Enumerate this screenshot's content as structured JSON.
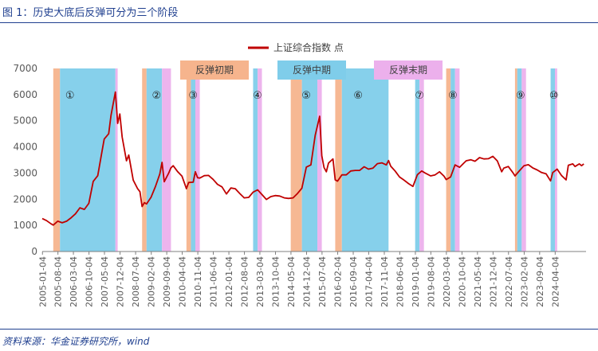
{
  "figure": {
    "title": "图 1：历史大底后反弹可分为三个阶段",
    "source": "资料来源：华金证券研究所，wind"
  },
  "chart_data": {
    "type": "line",
    "series": [
      {
        "name": "上证综合指数 点",
        "color": "#c00000",
        "points": [
          [
            "2005-01",
            1260
          ],
          [
            "2005-03",
            1180
          ],
          [
            "2005-05",
            1060
          ],
          [
            "2005-06",
            1010
          ],
          [
            "2005-08",
            1160
          ],
          [
            "2005-10",
            1100
          ],
          [
            "2005-12",
            1160
          ],
          [
            "2006-02",
            1290
          ],
          [
            "2006-04",
            1440
          ],
          [
            "2006-06",
            1670
          ],
          [
            "2006-08",
            1610
          ],
          [
            "2006-10",
            1840
          ],
          [
            "2006-12",
            2680
          ],
          [
            "2007-02",
            2900
          ],
          [
            "2007-04",
            3840
          ],
          [
            "2007-05",
            4300
          ],
          [
            "2007-07",
            4500
          ],
          [
            "2007-08",
            5200
          ],
          [
            "2007-10",
            6100
          ],
          [
            "2007-11",
            4900
          ],
          [
            "2007-12",
            5260
          ],
          [
            "2008-01",
            4380
          ],
          [
            "2008-03",
            3470
          ],
          [
            "2008-04",
            3690
          ],
          [
            "2008-06",
            2730
          ],
          [
            "2008-08",
            2400
          ],
          [
            "2008-09",
            2290
          ],
          [
            "2008-10",
            1720
          ],
          [
            "2008-11",
            1870
          ],
          [
            "2008-12",
            1820
          ],
          [
            "2009-02",
            2080
          ],
          [
            "2009-04",
            2480
          ],
          [
            "2009-06",
            2960
          ],
          [
            "2009-07",
            3410
          ],
          [
            "2009-08",
            2670
          ],
          [
            "2009-10",
            3000
          ],
          [
            "2009-11",
            3200
          ],
          [
            "2009-12",
            3280
          ],
          [
            "2010-02",
            3050
          ],
          [
            "2010-04",
            2880
          ],
          [
            "2010-06",
            2400
          ],
          [
            "2010-07",
            2640
          ],
          [
            "2010-09",
            2650
          ],
          [
            "2010-10",
            3050
          ],
          [
            "2010-11",
            2820
          ],
          [
            "2010-12",
            2810
          ],
          [
            "2011-02",
            2900
          ],
          [
            "2011-04",
            2910
          ],
          [
            "2011-06",
            2760
          ],
          [
            "2011-08",
            2570
          ],
          [
            "2011-10",
            2470
          ],
          [
            "2011-12",
            2200
          ],
          [
            "2012-02",
            2430
          ],
          [
            "2012-04",
            2400
          ],
          [
            "2012-06",
            2220
          ],
          [
            "2012-08",
            2050
          ],
          [
            "2012-10",
            2070
          ],
          [
            "2012-12",
            2270
          ],
          [
            "2013-02",
            2360
          ],
          [
            "2013-04",
            2180
          ],
          [
            "2013-06",
            1990
          ],
          [
            "2013-08",
            2100
          ],
          [
            "2013-10",
            2140
          ],
          [
            "2013-12",
            2120
          ],
          [
            "2014-02",
            2050
          ],
          [
            "2014-04",
            2030
          ],
          [
            "2014-06",
            2050
          ],
          [
            "2014-08",
            2220
          ],
          [
            "2014-10",
            2420
          ],
          [
            "2014-12",
            3230
          ],
          [
            "2015-02",
            3310
          ],
          [
            "2015-04",
            4440
          ],
          [
            "2015-06",
            5170
          ],
          [
            "2015-07",
            3660
          ],
          [
            "2015-08",
            3210
          ],
          [
            "2015-09",
            3050
          ],
          [
            "2015-10",
            3380
          ],
          [
            "2015-12",
            3540
          ],
          [
            "2016-01",
            2740
          ],
          [
            "2016-02",
            2690
          ],
          [
            "2016-04",
            2930
          ],
          [
            "2016-06",
            2930
          ],
          [
            "2016-08",
            3080
          ],
          [
            "2016-10",
            3100
          ],
          [
            "2016-12",
            3100
          ],
          [
            "2017-02",
            3240
          ],
          [
            "2017-04",
            3150
          ],
          [
            "2017-06",
            3190
          ],
          [
            "2017-08",
            3360
          ],
          [
            "2017-10",
            3390
          ],
          [
            "2017-12",
            3310
          ],
          [
            "2018-01",
            3480
          ],
          [
            "2018-02",
            3260
          ],
          [
            "2018-04",
            3080
          ],
          [
            "2018-06",
            2850
          ],
          [
            "2018-08",
            2730
          ],
          [
            "2018-10",
            2600
          ],
          [
            "2018-12",
            2490
          ],
          [
            "2019-02",
            2940
          ],
          [
            "2019-04",
            3080
          ],
          [
            "2019-06",
            2980
          ],
          [
            "2019-08",
            2890
          ],
          [
            "2019-10",
            2930
          ],
          [
            "2019-12",
            3050
          ],
          [
            "2020-02",
            2880
          ],
          [
            "2020-03",
            2750
          ],
          [
            "2020-05",
            2850
          ],
          [
            "2020-07",
            3310
          ],
          [
            "2020-09",
            3220
          ],
          [
            "2020-11",
            3390
          ],
          [
            "2020-12",
            3470
          ],
          [
            "2021-02",
            3510
          ],
          [
            "2021-04",
            3450
          ],
          [
            "2021-06",
            3590
          ],
          [
            "2021-08",
            3540
          ],
          [
            "2021-10",
            3550
          ],
          [
            "2021-12",
            3640
          ],
          [
            "2022-02",
            3460
          ],
          [
            "2022-04",
            3050
          ],
          [
            "2022-05",
            3190
          ],
          [
            "2022-07",
            3250
          ],
          [
            "2022-09",
            3020
          ],
          [
            "2022-10",
            2890
          ],
          [
            "2022-12",
            3090
          ],
          [
            "2023-02",
            3280
          ],
          [
            "2023-04",
            3320
          ],
          [
            "2023-06",
            3200
          ],
          [
            "2023-08",
            3120
          ],
          [
            "2023-10",
            3020
          ],
          [
            "2023-12",
            2970
          ],
          [
            "2024-02",
            2700
          ],
          [
            "2024-03",
            3020
          ],
          [
            "2024-05",
            3150
          ],
          [
            "2024-07",
            2900
          ],
          [
            "2024-09",
            2740
          ],
          [
            "2024-10",
            3300
          ],
          [
            "2024-12",
            3350
          ],
          [
            "2025-01",
            3250
          ],
          [
            "2025-03",
            3350
          ],
          [
            "2025-04",
            3280
          ],
          [
            "2025-05",
            3350
          ]
        ]
      }
    ],
    "y_axis": {
      "min": 0,
      "max": 7000,
      "ticks": [
        0,
        1000,
        2000,
        3000,
        4000,
        5000,
        6000,
        7000
      ]
    },
    "x_axis": {
      "range": [
        "2005-01",
        "2025-06"
      ],
      "ticks": [
        "2005-01-04",
        "2005-08-04",
        "2006-03-04",
        "2006-10-04",
        "2007-05-04",
        "2007-12-04",
        "2008-07-04",
        "2009-02-04",
        "2009-09-04",
        "2010-04-04",
        "2010-11-04",
        "2011-06-04",
        "2012-01-04",
        "2012-08-04",
        "2013-03-04",
        "2013-10-04",
        "2014-05-04",
        "2014-12-04",
        "2015-07-04",
        "2016-02-04",
        "2016-09-04",
        "2017-04-04",
        "2017-11-04",
        "2018-06-04",
        "2019-01-04",
        "2019-08-04",
        "2020-03-04",
        "2020-10-04",
        "2021-05-04",
        "2021-12-04",
        "2022-07-04",
        "2023-02-04",
        "2023-09-04",
        "2024-04-04"
      ]
    },
    "legend": {
      "position": "top-center",
      "entries": [
        "上证综合指数 点"
      ]
    },
    "phase_legend": [
      {
        "label": "反弹初期",
        "color": "#f6b48d"
      },
      {
        "label": "反弹中期",
        "color": "#7fcdea"
      },
      {
        "label": "反弹末期",
        "color": "#ecb0ec"
      }
    ],
    "rebounds": [
      {
        "label": "①",
        "early": [
          "2005-06",
          "2005-09"
        ],
        "mid": [
          "2005-09",
          "2007-10"
        ],
        "late": [
          "2007-10",
          "2007-11"
        ]
      },
      {
        "label": "②",
        "early": [
          "2008-10",
          "2008-12"
        ],
        "mid": [
          "2008-12",
          "2009-07"
        ],
        "late": [
          "2009-07",
          "2009-11"
        ]
      },
      {
        "label": "③",
        "early": [
          "2010-06",
          "2010-08"
        ],
        "mid": [
          "2010-08",
          "2010-10"
        ],
        "late": [
          "2010-10",
          "2010-12"
        ]
      },
      {
        "label": "④",
        "early": null,
        "mid": [
          "2012-12",
          "2013-02"
        ],
        "late": [
          "2013-02",
          "2013-04"
        ]
      },
      {
        "label": "⑤",
        "early": [
          "2014-05",
          "2014-10"
        ],
        "mid": [
          "2014-10",
          "2015-05"
        ],
        "late": [
          "2015-05",
          "2015-07"
        ]
      },
      {
        "label": "⑥",
        "early": [
          "2016-01",
          "2016-04"
        ],
        "mid": [
          "2016-04",
          "2018-01"
        ],
        "late": null
      },
      {
        "label": "⑦",
        "early": null,
        "mid": [
          "2019-01",
          "2019-03"
        ],
        "late": [
          "2019-03",
          "2019-05"
        ]
      },
      {
        "label": "⑧",
        "early": [
          "2020-03",
          "2020-05"
        ],
        "mid": [
          "2020-05",
          "2020-07"
        ],
        "late": [
          "2020-07",
          "2020-09"
        ]
      },
      {
        "label": "⑨",
        "early": [
          "2022-10",
          "2022-11"
        ],
        "mid": [
          "2022-11",
          "2023-01"
        ],
        "late": [
          "2023-01",
          "2023-03"
        ]
      },
      {
        "label": "⑩",
        "early": null,
        "mid": [
          "2024-02",
          "2024-04"
        ],
        "late": [
          "2024-04",
          "2024-05"
        ]
      }
    ],
    "grid": false
  }
}
